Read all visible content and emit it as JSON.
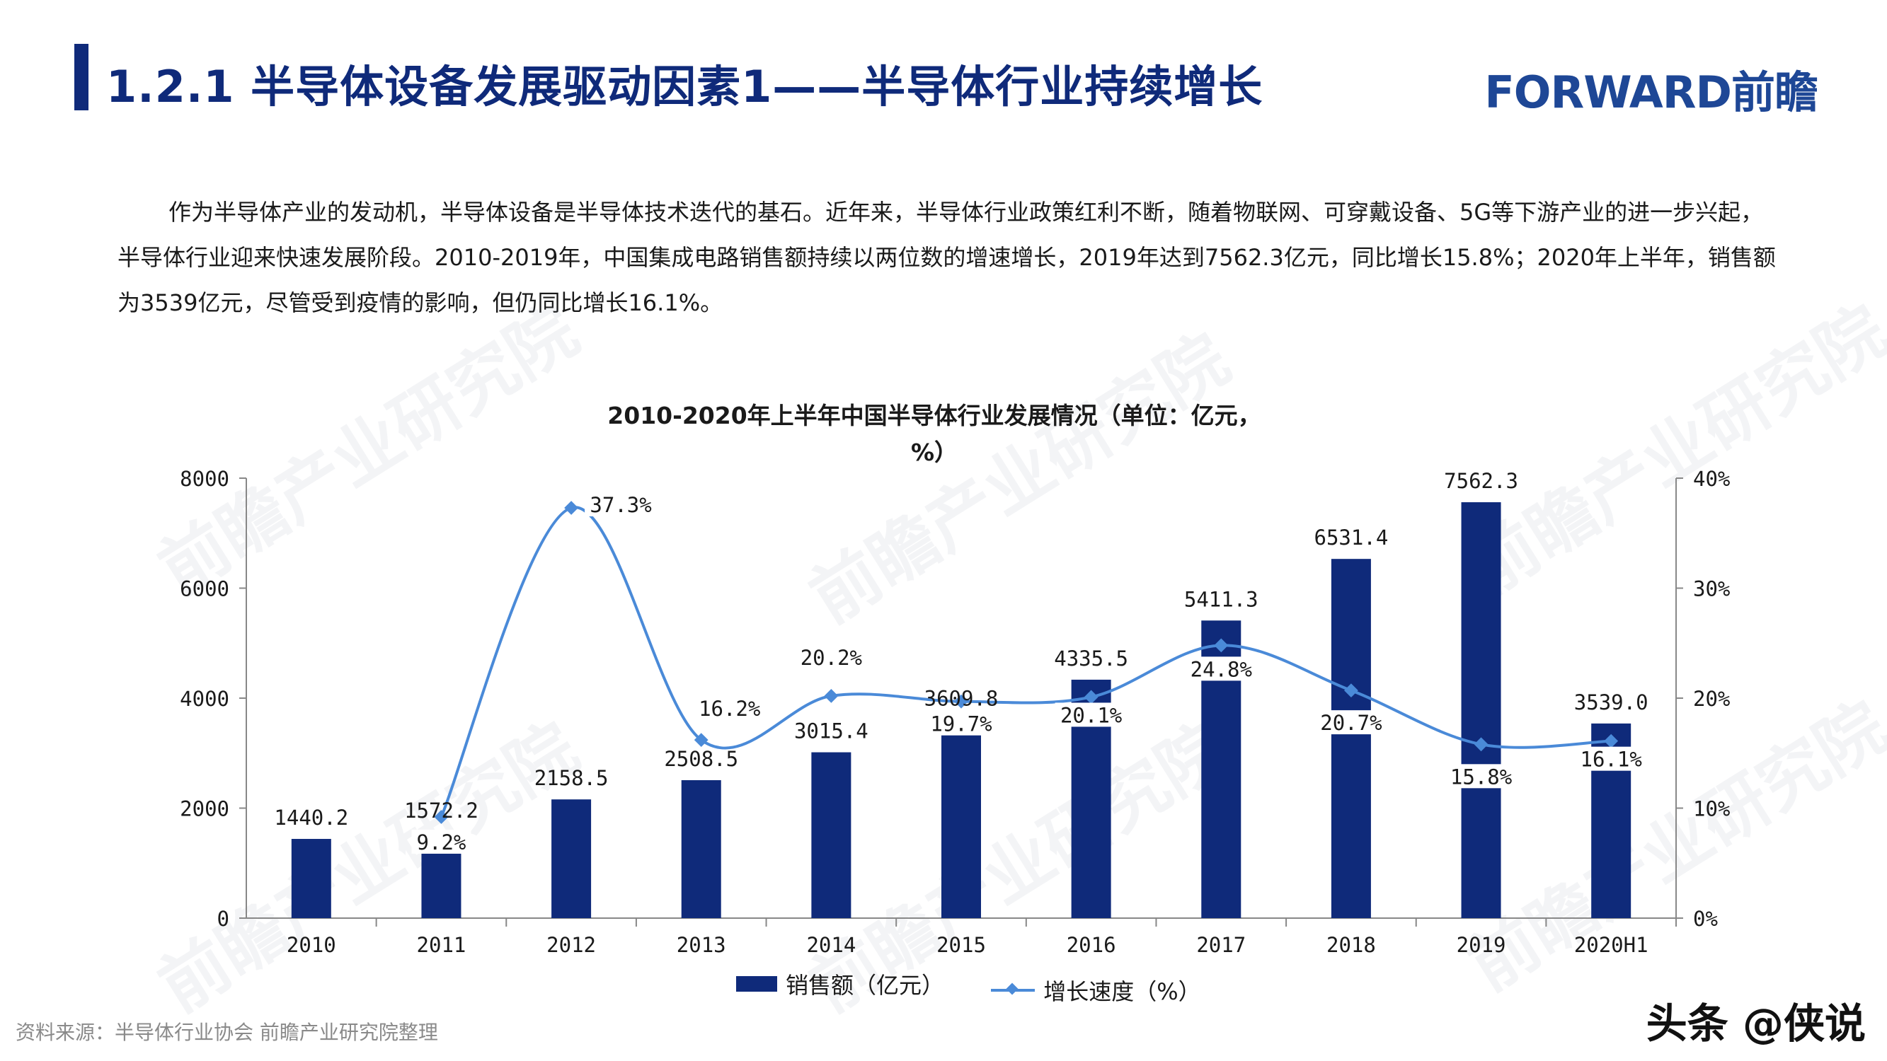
{
  "header": {
    "title": "1.2.1 半导体设备发展驱动因素1——半导体行业持续增长",
    "logo": "FORWARD前瞻"
  },
  "paragraph": "作为半导体产业的发动机，半导体设备是半导体技术迭代的基石。近年来，半导体行业政策红利不断，随着物联网、可穿戴设备、5G等下游产业的进一步兴起，半导体行业迎来快速发展阶段。2010-2019年，中国集成电路销售额持续以两位数的增速增长，2019年达到7562.3亿元，同比增长15.8%；2020年上半年，销售额为3539亿元，尽管受到疫情的影响，但仍同比增长16.1%。",
  "chart_data": {
    "type": "bar+line",
    "title_line1": "2010-2020年上半年中国半导体行业发展情况（单位：亿元，",
    "title_line2": "%）",
    "categories": [
      "2010",
      "2011",
      "2012",
      "2013",
      "2014",
      "2015",
      "2016",
      "2017",
      "2018",
      "2019",
      "2020H1"
    ],
    "series": [
      {
        "name": "销售额（亿元）",
        "type": "bar",
        "axis": "left",
        "color": "#0f2a7a",
        "values": [
          1440.2,
          1572.2,
          2158.5,
          2508.5,
          3015.4,
          3609.8,
          4335.5,
          5411.3,
          6531.4,
          7562.3,
          3539.0
        ],
        "labels": [
          "1440.2",
          "1572.2",
          "2158.5",
          "2508.5",
          "3015.4",
          "3609.8",
          "4335.5",
          "5411.3",
          "6531.4",
          "7562.3",
          "3539.0"
        ]
      },
      {
        "name": "增长速度（%）",
        "type": "line",
        "axis": "right",
        "color": "#4a8ad8",
        "values": [
          null,
          9.2,
          37.3,
          16.2,
          20.2,
          19.7,
          20.1,
          24.8,
          20.7,
          15.8,
          16.1
        ],
        "labels": [
          "",
          "9.2%",
          "37.3%",
          "16.2%",
          "20.2%",
          "19.7%",
          "20.1%",
          "24.8%",
          "20.7%",
          "15.8%",
          "16.1%"
        ]
      }
    ],
    "left_axis": {
      "min": 0,
      "max": 8000,
      "ticks": [
        "0",
        "2000",
        "4000",
        "6000",
        "8000"
      ]
    },
    "right_axis": {
      "min": 0,
      "max": 40,
      "ticks": [
        "0%",
        "10%",
        "20%",
        "30%",
        "40%"
      ]
    },
    "legend_position": "bottom",
    "grid": false
  },
  "legend": {
    "bar": "销售额（亿元）",
    "line": "增长速度（%）"
  },
  "source": "资料来源：半导体行业协会  前瞻产业研究院整理",
  "badge": "头条 @侠说",
  "watermark": "前瞻产业研究院"
}
